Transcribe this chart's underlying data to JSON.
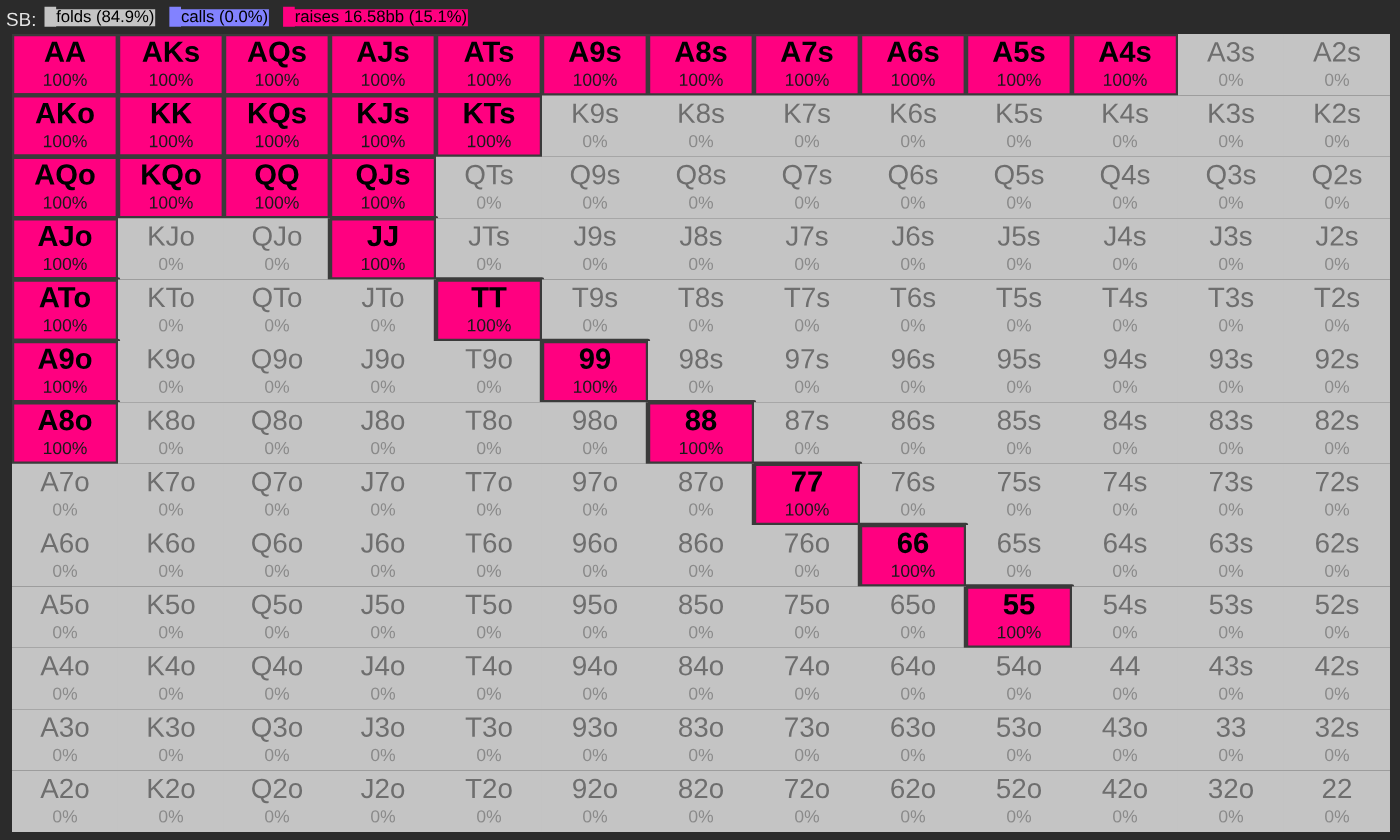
{
  "chart_data": {
    "type": "heatmap",
    "legend_title": "SB:",
    "legend": "top left",
    "series": [
      {
        "name": "folds (84.9%)",
        "color": "#c4c4c4",
        "values": [
          null,
          null,
          null,
          null,
          null,
          null,
          null,
          null,
          null,
          null,
          null,
          null,
          null
        ]
      },
      {
        "name": "calls (0.0%)",
        "color": "#8282ff",
        "values": [
          null,
          null,
          null,
          null,
          null,
          null,
          null,
          null,
          null,
          null,
          null,
          null,
          null
        ]
      },
      {
        "name": "raises 16.58bb (15.1%)",
        "color": "#ff0080",
        "values": [
          null,
          null,
          null,
          null,
          null,
          null,
          null,
          null,
          null,
          null,
          null,
          null,
          null
        ]
      }
    ],
    "categories": [
      null,
      null,
      null,
      null,
      null,
      null,
      null,
      null,
      null,
      null,
      null,
      null,
      null
    ],
    "y_categories": [
      null,
      null,
      null,
      null,
      null,
      null,
      null,
      null,
      null,
      null,
      null,
      null,
      null
    ],
    "cells": [
      [
        100,
        100,
        100,
        100,
        100,
        100,
        100,
        100,
        100,
        100,
        100,
        0,
        0
      ],
      [
        100,
        100,
        100,
        100,
        100,
        0,
        0,
        0,
        0,
        0,
        0,
        0,
        0
      ],
      [
        100,
        100,
        100,
        100,
        0,
        0,
        0,
        0,
        0,
        0,
        0,
        0,
        0
      ],
      [
        100,
        0,
        0,
        100,
        0,
        0,
        0,
        0,
        0,
        0,
        0,
        0,
        0
      ],
      [
        100,
        0,
        0,
        0,
        100,
        0,
        0,
        0,
        0,
        0,
        0,
        0,
        0
      ],
      [
        100,
        0,
        0,
        0,
        0,
        100,
        0,
        0,
        0,
        0,
        0,
        0,
        0
      ],
      [
        100,
        0,
        0,
        0,
        0,
        0,
        100,
        0,
        0,
        0,
        0,
        0,
        0
      ],
      [
        0,
        0,
        0,
        0,
        0,
        0,
        0,
        100,
        0,
        0,
        0,
        0,
        0
      ],
      [
        0,
        0,
        0,
        0,
        0,
        0,
        0,
        0,
        100,
        0,
        0,
        0,
        0
      ],
      [
        0,
        0,
        0,
        0,
        0,
        0,
        0,
        0,
        0,
        100,
        0,
        0,
        0
      ],
      [
        0,
        0,
        0,
        0,
        0,
        0,
        0,
        0,
        0,
        0,
        0,
        0,
        0
      ],
      [
        0,
        0,
        0,
        0,
        0,
        0,
        0,
        0,
        0,
        0,
        0,
        0,
        0
      ],
      [
        0,
        0,
        0,
        0,
        0,
        0,
        0,
        0,
        0,
        0,
        0,
        0,
        0
      ]
    ],
    "cell_labels": [
      [
        "100%",
        "100%",
        "100%",
        "100%",
        "100%",
        "100%",
        "100%",
        "100%",
        "100%",
        "100%",
        "100%",
        "0%",
        "0%"
      ],
      [
        "100%",
        "100%",
        "100%",
        "100%",
        "100%",
        "0%",
        "0%",
        "0%",
        "0%",
        "0%",
        "0%",
        "0%",
        "0%"
      ],
      [
        "100%",
        "100%",
        "100%",
        "100%",
        "0%",
        "0%",
        "0%",
        "0%",
        "0%",
        "0%",
        "0%",
        "0%",
        "0%"
      ],
      [
        "100%",
        "0%",
        "0%",
        "100%",
        "0%",
        "0%",
        "0%",
        "0%",
        "0%",
        "0%",
        "0%",
        "0%",
        "0%"
      ],
      [
        "100%",
        "0%",
        "0%",
        "0%",
        "100%",
        "0%",
        "0%",
        "0%",
        "0%",
        "0%",
        "0%",
        "0%",
        "0%"
      ],
      [
        "100%",
        "0%",
        "0%",
        "0%",
        "0%",
        "100%",
        "0%",
        "0%",
        "0%",
        "0%",
        "0%",
        "0%",
        "0%"
      ],
      [
        "100%",
        "0%",
        "0%",
        "0%",
        "0%",
        "0%",
        "100%",
        "0%",
        "0%",
        "0%",
        "0%",
        "0%",
        "0%"
      ],
      [
        "0%",
        "0%",
        "0%",
        "0%",
        "0%",
        "0%",
        "0%",
        "100%",
        "0%",
        "0%",
        "0%",
        "0%",
        "0%"
      ],
      [
        "0%",
        "0%",
        "0%",
        "0%",
        "0%",
        "0%",
        "0%",
        "0%",
        "100%",
        "0%",
        "0%",
        "0%",
        "0%"
      ],
      [
        "0%",
        "0%",
        "0%",
        "0%",
        "0%",
        "0%",
        "0%",
        "0%",
        "0%",
        "100%",
        "0%",
        "0%",
        "0%"
      ],
      [
        "0%",
        "0%",
        "0%",
        "0%",
        "0%",
        "0%",
        "0%",
        "0%",
        "0%",
        "0%",
        "0%",
        "0%",
        "0%"
      ],
      [
        "0%",
        "0%",
        "0%",
        "0%",
        "0%",
        "0%",
        "0%",
        "0%",
        "0%",
        "0%",
        "0%",
        "0%",
        "0%"
      ],
      [
        "0%",
        "0%",
        "0%",
        "0%",
        "0%",
        "0%",
        "0%",
        "0%",
        "0%",
        "0%",
        "0%",
        "0%",
        "0%"
      ]
    ],
    "annotations": [
      "AA",
      "AKs",
      "AQs",
      "AJs",
      "ATs",
      "A9s",
      "A8s",
      "A7s",
      "A6s",
      "A5s",
      "A4s",
      "A3s",
      "A2s",
      "AKo",
      "KK",
      "KQs",
      "KJs",
      "KTs",
      "K9s",
      "K8s",
      "K7s",
      "K6s",
      "K5s",
      "K4s",
      "K3s",
      "K2s",
      "AQo",
      "KQo",
      "QQ",
      "QJs",
      "QTs",
      "Q9s",
      "Q8s",
      "Q7s",
      "Q6s",
      "Q5s",
      "Q4s",
      "Q3s",
      "Q2s",
      "AJo",
      "KJo",
      "QJo",
      "JJ",
      "JTs",
      "J9s",
      "J8s",
      "J7s",
      "J6s",
      "J5s",
      "J4s",
      "J3s",
      "J2s",
      "ATo",
      "KTo",
      "QTo",
      "JTo",
      "TT",
      "T9s",
      "T8s",
      "T7s",
      "T6s",
      "T5s",
      "T4s",
      "T3s",
      "T2s",
      "A9o",
      "K9o",
      "Q9o",
      "J9o",
      "T9o",
      "99",
      "98s",
      "97s",
      "96s",
      "95s",
      "94s",
      "93s",
      "92s",
      "A8o",
      "K8o",
      "Q8o",
      "J8o",
      "T8o",
      "98o",
      "88",
      "87s",
      "86s",
      "85s",
      "84s",
      "83s",
      "82s",
      "A7o",
      "K7o",
      "Q7o",
      "J7o",
      "T7o",
      "97o",
      "87o",
      "77",
      "76s",
      "75s",
      "74s",
      "73s",
      "72s",
      "A6o",
      "K6o",
      "Q6o",
      "J6o",
      "T6o",
      "96o",
      "86o",
      "76o",
      "66",
      "65s",
      "64s",
      "63s",
      "62s",
      "A5o",
      "K5o",
      "Q5o",
      "J5o",
      "T5o",
      "95o",
      "85o",
      "75o",
      "65o",
      "55",
      "54s",
      "53s",
      "52s",
      "A4o",
      "K4o",
      "Q4o",
      "J4o",
      "T4o",
      "94o",
      "84o",
      "74o",
      "64o",
      "54o",
      "44",
      "43s",
      "42s",
      "A3o",
      "K3o",
      "Q3o",
      "J3o",
      "T3o",
      "93o",
      "83o",
      "73o",
      "63o",
      "53o",
      "43o",
      "33",
      "32s",
      "A2o",
      "K2o",
      "Q2o",
      "J2o",
      "T2o",
      "92o",
      "82o",
      "72o",
      "62o",
      "52o",
      "42o",
      "32o",
      "22"
    ]
  }
}
